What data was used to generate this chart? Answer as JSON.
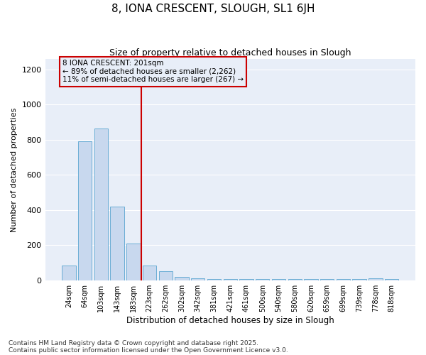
{
  "title1": "8, IONA CRESCENT, SLOUGH, SL1 6JH",
  "title2": "Size of property relative to detached houses in Slough",
  "xlabel": "Distribution of detached houses by size in Slough",
  "ylabel": "Number of detached properties",
  "categories": [
    "24sqm",
    "64sqm",
    "103sqm",
    "143sqm",
    "183sqm",
    "223sqm",
    "262sqm",
    "302sqm",
    "342sqm",
    "381sqm",
    "421sqm",
    "461sqm",
    "500sqm",
    "540sqm",
    "580sqm",
    "620sqm",
    "659sqm",
    "699sqm",
    "739sqm",
    "778sqm",
    "818sqm"
  ],
  "values": [
    85,
    790,
    865,
    420,
    210,
    85,
    50,
    20,
    10,
    5,
    5,
    5,
    5,
    5,
    5,
    5,
    5,
    5,
    5,
    10,
    5
  ],
  "bar_color": "#c8d8ee",
  "bar_edgecolor": "#6aadd5",
  "vline_x": 4.5,
  "vline_color": "#cc0000",
  "annotation_text": "8 IONA CRESCENT: 201sqm\n← 89% of detached houses are smaller (2,262)\n11% of semi-detached houses are larger (267) →",
  "annotation_box_color": "#cc0000",
  "ylim": [
    0,
    1260
  ],
  "yticks": [
    0,
    200,
    400,
    600,
    800,
    1000,
    1200
  ],
  "background_color": "#ffffff",
  "plot_bg_color": "#e8eef8",
  "grid_color": "#ffffff",
  "footer1": "Contains HM Land Registry data © Crown copyright and database right 2025.",
  "footer2": "Contains public sector information licensed under the Open Government Licence v3.0."
}
